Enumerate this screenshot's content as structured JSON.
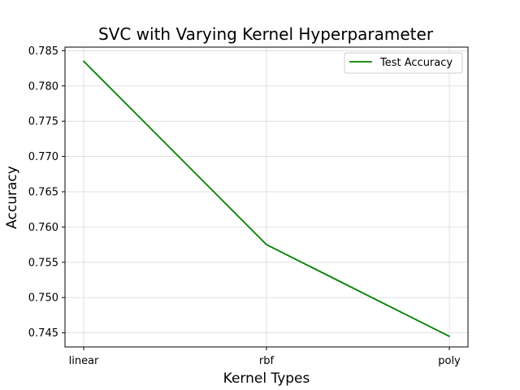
{
  "chart_data": {
    "type": "line",
    "title": "SVC with Varying Kernel Hyperparameter",
    "xlabel": "Kernel Types",
    "ylabel": "Accuracy",
    "categories": [
      "linear",
      "rbf",
      "poly"
    ],
    "series": [
      {
        "name": "Test Accuracy",
        "values": [
          0.7835,
          0.7575,
          0.7445
        ],
        "color": "#008000"
      }
    ],
    "ylim": [
      0.743,
      0.7855
    ],
    "yticks": [
      0.745,
      0.75,
      0.755,
      0.76,
      0.765,
      0.77,
      0.775,
      0.78,
      0.785
    ],
    "ytick_labels": [
      "0.745",
      "0.750",
      "0.755",
      "0.760",
      "0.765",
      "0.770",
      "0.775",
      "0.780",
      "0.785"
    ],
    "grid": true,
    "legend_position": "top-right"
  }
}
